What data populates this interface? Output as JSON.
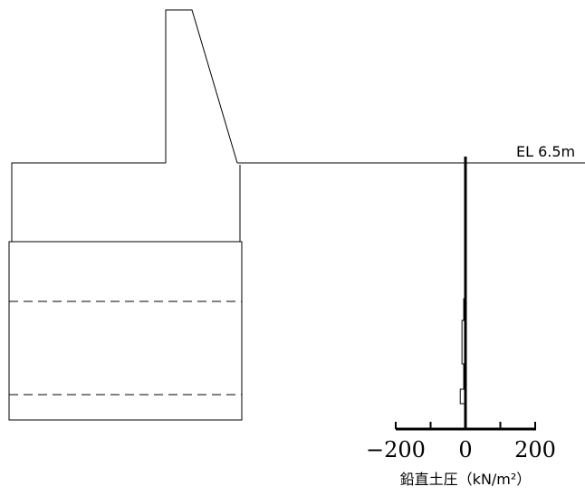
{
  "elevation_label": "EL 6.5m",
  "axis_unit_label": "鉛直土圧（kN/m²）",
  "chart_data": {
    "type": "bar",
    "orientation": "horizontal",
    "xlabel": "鉛直土圧（kN/m²）",
    "xlim": [
      -200,
      200
    ],
    "x_ticks": [
      -200,
      -100,
      0,
      100,
      200
    ],
    "x_tick_labels": [
      "−200",
      "0",
      "200"
    ],
    "bars": [
      {
        "value": 5
      },
      {
        "value": 10
      },
      {
        "value": 5
      },
      {
        "value": 15
      }
    ]
  }
}
